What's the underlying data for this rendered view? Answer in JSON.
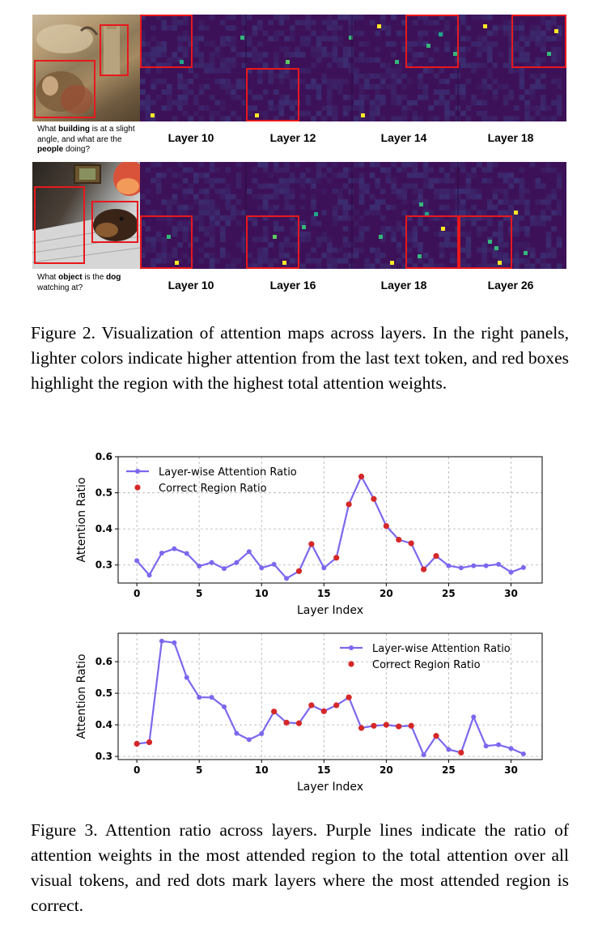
{
  "figure2": {
    "row1": {
      "question_parts": [
        "What ",
        "building",
        " is at a slight angle, and what are the ",
        "people",
        " doing?"
      ],
      "layers": [
        "Layer 10",
        "Layer 12",
        "Layer 14",
        "Layer 18"
      ]
    },
    "row2": {
      "question_parts": [
        "What ",
        "object",
        " is the ",
        "dog",
        " watching at?"
      ],
      "layers": [
        "Layer 10",
        "Layer 16",
        "Layer 18",
        "Layer 26"
      ]
    },
    "caption": "Figure 2. Visualization of attention maps across layers. In the right panels, lighter colors indicate higher attention from the last text token, and red boxes highlight the region with the highest total attention weights.",
    "colors": {
      "heatmap_low": "#3d1158",
      "heatmap_mid": "#21908c",
      "heatmap_high": "#fde725",
      "box": "#e8181c"
    }
  },
  "chart_data": [
    {
      "type": "line",
      "title": "",
      "xlabel": "Layer Index",
      "ylabel": "Attention Ratio",
      "xlim": [
        -1.5,
        32.5
      ],
      "ylim": [
        0.25,
        0.6
      ],
      "xticks": [
        0,
        5,
        10,
        15,
        20,
        25,
        30
      ],
      "yticks": [
        0.3,
        0.4,
        0.5,
        0.6
      ],
      "grid": true,
      "legend_position": "upper-left",
      "series": [
        {
          "name": "Layer-wise Attention Ratio",
          "color": "#7b68ee",
          "x": [
            0,
            1,
            2,
            3,
            4,
            5,
            6,
            7,
            8,
            9,
            10,
            11,
            12,
            13,
            14,
            15,
            16,
            17,
            18,
            19,
            20,
            21,
            22,
            23,
            24,
            25,
            26,
            27,
            28,
            29,
            30,
            31
          ],
          "values": [
            0.312,
            0.272,
            0.333,
            0.345,
            0.332,
            0.297,
            0.307,
            0.29,
            0.307,
            0.337,
            0.292,
            0.302,
            0.263,
            0.283,
            0.358,
            0.292,
            0.32,
            0.468,
            0.545,
            0.483,
            0.408,
            0.37,
            0.36,
            0.288,
            0.325,
            0.298,
            0.292,
            0.298,
            0.298,
            0.302,
            0.28,
            0.293
          ]
        },
        {
          "name": "Correct Region Ratio",
          "color": "#d62728",
          "x": [
            13,
            14,
            16,
            17,
            18,
            19,
            20,
            21,
            22,
            23,
            24
          ],
          "values": [
            0.283,
            0.358,
            0.32,
            0.468,
            0.545,
            0.483,
            0.408,
            0.37,
            0.36,
            0.288,
            0.325
          ]
        }
      ]
    },
    {
      "type": "line",
      "title": "",
      "xlabel": "Layer Index",
      "ylabel": "Attention Ratio",
      "xlim": [
        -1.5,
        32.5
      ],
      "ylim": [
        0.29,
        0.69
      ],
      "xticks": [
        0,
        5,
        10,
        15,
        20,
        25,
        30
      ],
      "yticks": [
        0.3,
        0.4,
        0.5,
        0.6
      ],
      "grid": true,
      "legend_position": "upper-right",
      "series": [
        {
          "name": "Layer-wise Attention Ratio",
          "color": "#7b68ee",
          "x": [
            0,
            1,
            2,
            3,
            4,
            5,
            6,
            7,
            8,
            9,
            10,
            11,
            12,
            13,
            14,
            15,
            16,
            17,
            18,
            19,
            20,
            21,
            22,
            23,
            24,
            25,
            26,
            27,
            28,
            29,
            30,
            31
          ],
          "values": [
            0.34,
            0.345,
            0.665,
            0.66,
            0.55,
            0.487,
            0.487,
            0.457,
            0.373,
            0.353,
            0.372,
            0.442,
            0.407,
            0.405,
            0.462,
            0.443,
            0.462,
            0.487,
            0.39,
            0.397,
            0.4,
            0.395,
            0.397,
            0.305,
            0.365,
            0.322,
            0.312,
            0.425,
            0.333,
            0.337,
            0.325,
            0.308
          ]
        },
        {
          "name": "Correct Region Ratio",
          "color": "#d62728",
          "x": [
            0,
            1,
            11,
            12,
            13,
            14,
            15,
            16,
            17,
            18,
            19,
            20,
            21,
            22,
            24,
            26
          ],
          "values": [
            0.34,
            0.345,
            0.442,
            0.407,
            0.405,
            0.462,
            0.443,
            0.462,
            0.487,
            0.39,
            0.397,
            0.4,
            0.395,
            0.397,
            0.365,
            0.312
          ]
        }
      ]
    }
  ],
  "figure3": {
    "caption": "Figure 3. Attention ratio across layers. Purple lines indicate the ratio of attention weights in the most attended region to the total attention over all visual tokens, and red dots mark layers where the most attended region is correct."
  }
}
